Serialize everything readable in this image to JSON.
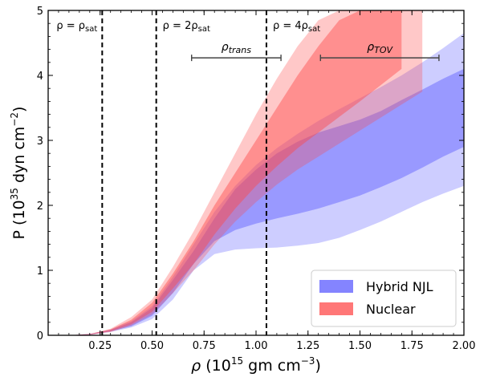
{
  "chart_data": {
    "type": "area",
    "xlabel": "ρ (10^15 gm cm^-3)",
    "ylabel": "P (10^35 dyn cm^-2)",
    "xlim": [
      0.0,
      2.0
    ],
    "ylim": [
      0.0,
      5.0
    ],
    "x_major_ticks": [
      0.25,
      0.5,
      0.75,
      1.0,
      1.25,
      1.5,
      1.75,
      2.0
    ],
    "x_tick_labels": [
      "0.25",
      "0.50",
      "0.75",
      "1.00",
      "1.25",
      "1.50",
      "1.75",
      "2.00"
    ],
    "y_major_ticks": [
      0,
      1,
      2,
      3,
      4,
      5
    ],
    "y_tick_labels": [
      "0",
      "1",
      "2",
      "3",
      "4",
      "5"
    ],
    "grid": false,
    "legend_position": "bottom-right",
    "vertical_lines": [
      {
        "x": 0.26,
        "label_main": "ρ = ρ",
        "label_sub": "sat"
      },
      {
        "x": 0.52,
        "label_main": "ρ = 2ρ",
        "label_sub": "sat"
      },
      {
        "x": 1.05,
        "label_main": "ρ = 4ρ",
        "label_sub": "sat"
      }
    ],
    "brackets": [
      {
        "label": "ρ",
        "sub": "trans",
        "x_range": [
          0.69,
          1.12
        ],
        "y": 4.27
      },
      {
        "label": "ρ",
        "sub": "TOV",
        "x_range": [
          1.31,
          1.88
        ],
        "y": 4.27
      }
    ],
    "series": [
      {
        "name": "Hybrid NJL",
        "color": "#5b5bff",
        "bands": [
          {
            "opacity": 0.3,
            "x": [
              0.1,
              0.2,
              0.3,
              0.4,
              0.5,
              0.6,
              0.7,
              0.8,
              0.9,
              1.0,
              1.1,
              1.2,
              1.3,
              1.4,
              1.5,
              1.6,
              1.7,
              1.8,
              1.9,
              2.0
            ],
            "lower": [
              0.0,
              0.01,
              0.05,
              0.12,
              0.25,
              0.55,
              1.0,
              1.25,
              1.32,
              1.34,
              1.35,
              1.38,
              1.42,
              1.5,
              1.62,
              1.75,
              1.9,
              2.05,
              2.18,
              2.3
            ],
            "upper": [
              0.0,
              0.02,
              0.09,
              0.22,
              0.45,
              0.9,
              1.4,
              1.9,
              2.3,
              2.62,
              2.88,
              3.1,
              3.3,
              3.48,
              3.65,
              3.82,
              4.0,
              4.2,
              4.42,
              4.65
            ]
          },
          {
            "opacity": 0.45,
            "x": [
              0.1,
              0.2,
              0.3,
              0.4,
              0.5,
              0.6,
              0.7,
              0.8,
              0.9,
              1.0,
              1.1,
              1.2,
              1.3,
              1.4,
              1.5,
              1.6,
              1.7,
              1.8,
              1.9,
              2.0
            ],
            "lower": [
              0.0,
              0.01,
              0.06,
              0.14,
              0.3,
              0.65,
              1.1,
              1.45,
              1.62,
              1.72,
              1.8,
              1.87,
              1.95,
              2.05,
              2.15,
              2.28,
              2.42,
              2.58,
              2.75,
              2.9
            ],
            "upper": [
              0.0,
              0.02,
              0.08,
              0.2,
              0.42,
              0.85,
              1.3,
              1.8,
              2.25,
              2.55,
              2.8,
              2.98,
              3.12,
              3.22,
              3.32,
              3.45,
              3.62,
              3.78,
              3.95,
              4.1
            ]
          }
        ]
      },
      {
        "name": "Nuclear",
        "color": "#ff4a4a",
        "bands": [
          {
            "opacity": 0.3,
            "x": [
              0.1,
              0.2,
              0.3,
              0.4,
              0.5,
              0.6,
              0.7,
              0.8,
              0.9,
              1.0,
              1.1,
              1.2,
              1.3,
              1.4,
              1.5,
              1.6,
              1.7,
              1.8
            ],
            "lower": [
              0.0,
              0.01,
              0.05,
              0.15,
              0.32,
              0.65,
              1.0,
              1.4,
              1.75,
              2.05,
              2.32,
              2.55,
              2.75,
              2.95,
              3.15,
              3.35,
              3.55,
              3.75
            ],
            "upper": [
              0.0,
              0.02,
              0.1,
              0.28,
              0.55,
              1.05,
              1.6,
              2.2,
              2.8,
              3.4,
              3.95,
              4.45,
              4.85,
              5.0,
              5.0,
              5.0,
              5.0,
              5.0
            ]
          },
          {
            "opacity": 0.45,
            "x": [
              0.1,
              0.2,
              0.3,
              0.4,
              0.5,
              0.6,
              0.7,
              0.8,
              0.9,
              1.0,
              1.1,
              1.2,
              1.3,
              1.4,
              1.5,
              1.6,
              1.7
            ],
            "lower": [
              0.0,
              0.01,
              0.06,
              0.17,
              0.36,
              0.72,
              1.1,
              1.55,
              1.95,
              2.3,
              2.6,
              2.88,
              3.12,
              3.36,
              3.6,
              3.85,
              4.1
            ],
            "upper": [
              0.0,
              0.02,
              0.09,
              0.24,
              0.5,
              0.95,
              1.45,
              2.0,
              2.5,
              3.0,
              3.5,
              4.0,
              4.45,
              4.85,
              5.0,
              5.0,
              5.0
            ]
          }
        ]
      }
    ]
  }
}
